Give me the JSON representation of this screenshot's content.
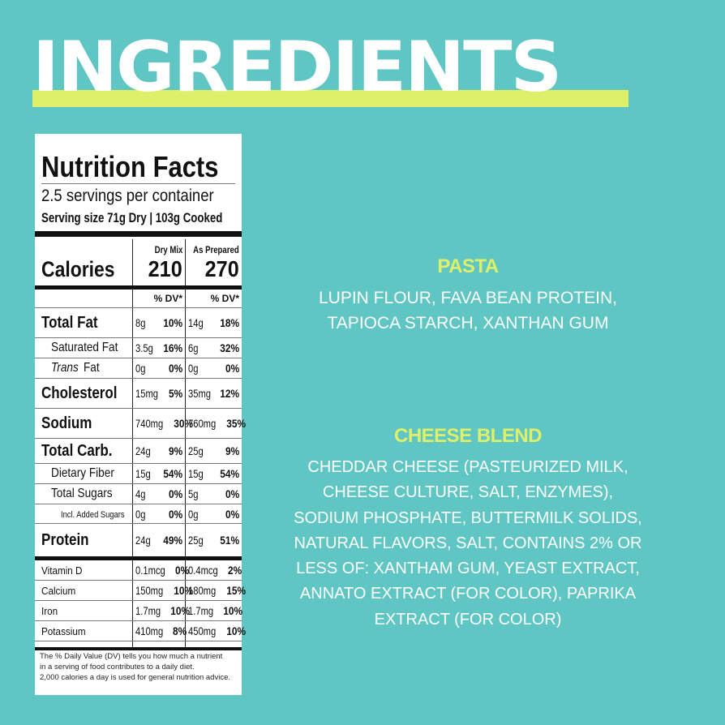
{
  "title": "INGREDIENTS",
  "colors": {
    "background": "#5fc6c4",
    "accent": "#def06a",
    "text": "#ffffff"
  },
  "nutrition_facts": {
    "heading": "Nutrition Facts",
    "servings": "2.5 servings per container",
    "serving_size": "Serving size  71g Dry | 103g Cooked",
    "calories_label": "Calories",
    "columns": [
      {
        "header": "Dry Mix",
        "calories": "210",
        "dv_header": "% DV*"
      },
      {
        "header": "As Prepared",
        "calories": "270",
        "dv_header": "% DV*"
      }
    ],
    "rows": [
      {
        "style": "major",
        "label": "Total Fat",
        "dry": [
          "8g",
          "10%"
        ],
        "prep": [
          "14g",
          "18%"
        ]
      },
      {
        "style": "sub",
        "label": "Saturated Fat",
        "dry": [
          "3.5g",
          "16%"
        ],
        "prep": [
          "6g",
          "32%"
        ]
      },
      {
        "style": "sub",
        "label_italic": "Trans",
        "label": " Fat",
        "dry": [
          "0g",
          "0%"
        ],
        "prep": [
          "0g",
          "0%"
        ]
      },
      {
        "style": "major",
        "label": "Cholesterol",
        "dry": [
          "15mg",
          "5%"
        ],
        "prep": [
          "35mg",
          "12%"
        ]
      },
      {
        "style": "major",
        "label": "Sodium",
        "dry": [
          "740mg",
          "30%"
        ],
        "prep": [
          "760mg",
          "35%"
        ]
      },
      {
        "style": "major",
        "label": "Total Carb.",
        "dry": [
          "24g",
          "9%"
        ],
        "prep": [
          "25g",
          "9%"
        ]
      },
      {
        "style": "sub",
        "label": "Dietary Fiber",
        "dry": [
          "15g",
          "54%"
        ],
        "prep": [
          "15g",
          "54%"
        ]
      },
      {
        "style": "sub",
        "label": "Total Sugars",
        "dry": [
          "4g",
          "0%"
        ],
        "prep": [
          "5g",
          "0%"
        ]
      },
      {
        "style": "small",
        "label": "Incl. Added Sugars",
        "dry": [
          "0g",
          "0%"
        ],
        "prep": [
          "0g",
          "0%"
        ]
      },
      {
        "style": "major",
        "label": "Protein",
        "dry": [
          "24g",
          "49%"
        ],
        "prep": [
          "25g",
          "51%"
        ]
      },
      {
        "style": "minor",
        "label": "Vitamin D",
        "dry": [
          "0.1mcg",
          "0%"
        ],
        "prep": [
          "0.4mcg",
          "2%"
        ]
      },
      {
        "style": "minor",
        "label": "Calcium",
        "dry": [
          "150mg",
          "10%"
        ],
        "prep": [
          "180mg",
          "15%"
        ]
      },
      {
        "style": "minor",
        "label": "Iron",
        "dry": [
          "1.7mg",
          "10%"
        ],
        "prep": [
          "1.7mg",
          "10%"
        ]
      },
      {
        "style": "minor",
        "label": "Potassium",
        "dry": [
          "410mg",
          "8%"
        ],
        "prep": [
          "450mg",
          "10%"
        ]
      }
    ],
    "footnote": [
      "The % Daily Value (DV) tells you how much a nutrient",
      "in a serving of food contributes to a daily diet.",
      "2,000 calories a day is used for general nutrition advice."
    ]
  },
  "sections": [
    {
      "title": "PASTA",
      "lines": [
        "LUPIN FLOUR, FAVA BEAN PROTEIN,",
        "TAPIOCA STARCH, XANTHAN GUM"
      ]
    },
    {
      "title": "CHEESE BLEND",
      "lines": [
        "CHEDDAR CHEESE (PASTEURIZED MILK,",
        "CHEESE CULTURE, SALT, ENZYMES),",
        "SODIUM PHOSPHATE, BUTTERMILK SOLIDS,",
        "NATURAL FLAVORS, SALT, CONTAINS 2% OR",
        "LESS OF: XANTHAM GUM, YEAST EXTRACT,",
        "ANNATO EXTRACT (FOR COLOR), PAPRIKA",
        "EXTRACT (FOR COLOR)"
      ]
    }
  ]
}
